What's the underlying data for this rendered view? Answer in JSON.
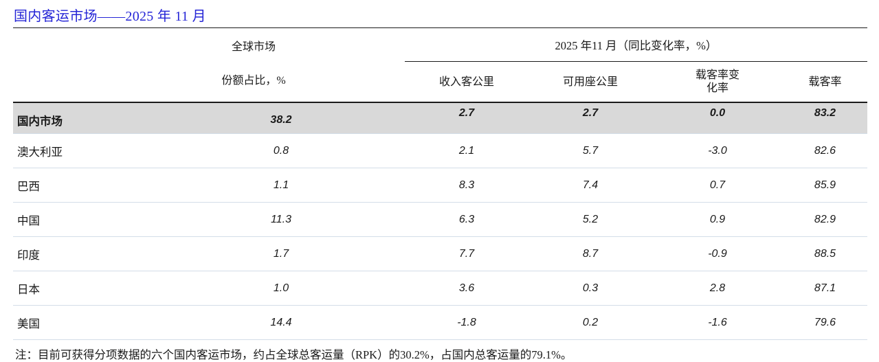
{
  "title": "国内客运市场——2025 年 11 月",
  "table": {
    "global_market_label": "全球市场",
    "share_label": "份额占比，%",
    "period_header": "2025 年11 月（同比变化率，%）",
    "columns": [
      "收入客公里",
      "可用座公里",
      "载客率变化率",
      "载客率"
    ],
    "rows": [
      {
        "label": "国内市场",
        "share": "38.2",
        "rpk": "2.7",
        "ask": "2.7",
        "plf_change": "0.0",
        "plf": "83.2"
      },
      {
        "label": "澳大利亚",
        "share": "0.8",
        "rpk": "2.1",
        "ask": "5.7",
        "plf_change": "-3.0",
        "plf": "82.6"
      },
      {
        "label": "巴西",
        "share": "1.1",
        "rpk": "8.3",
        "ask": "7.4",
        "plf_change": "0.7",
        "plf": "85.9"
      },
      {
        "label": "中国",
        "share": "11.3",
        "rpk": "6.3",
        "ask": "5.2",
        "plf_change": "0.9",
        "plf": "82.9"
      },
      {
        "label": "印度",
        "share": "1.7",
        "rpk": "7.7",
        "ask": "8.7",
        "plf_change": "-0.9",
        "plf": "88.5"
      },
      {
        "label": "日本",
        "share": "1.0",
        "rpk": "3.6",
        "ask": "0.3",
        "plf_change": "2.8",
        "plf": "87.1"
      },
      {
        "label": "美国",
        "share": "14.4",
        "rpk": "-1.8",
        "ask": "0.2",
        "plf_change": "-1.6",
        "plf": "79.6"
      }
    ]
  },
  "note": "注：目前可获得分项数据的六个国内客运市场，约占全球总客运量（RPK）的30.2%，占国内总客运量的79.1%。",
  "colors": {
    "title_blue": "#2424D6",
    "highlight_row_bg": "#D9D9D9",
    "separator": "#D3DDE8",
    "rule": "#1A1A1A"
  }
}
